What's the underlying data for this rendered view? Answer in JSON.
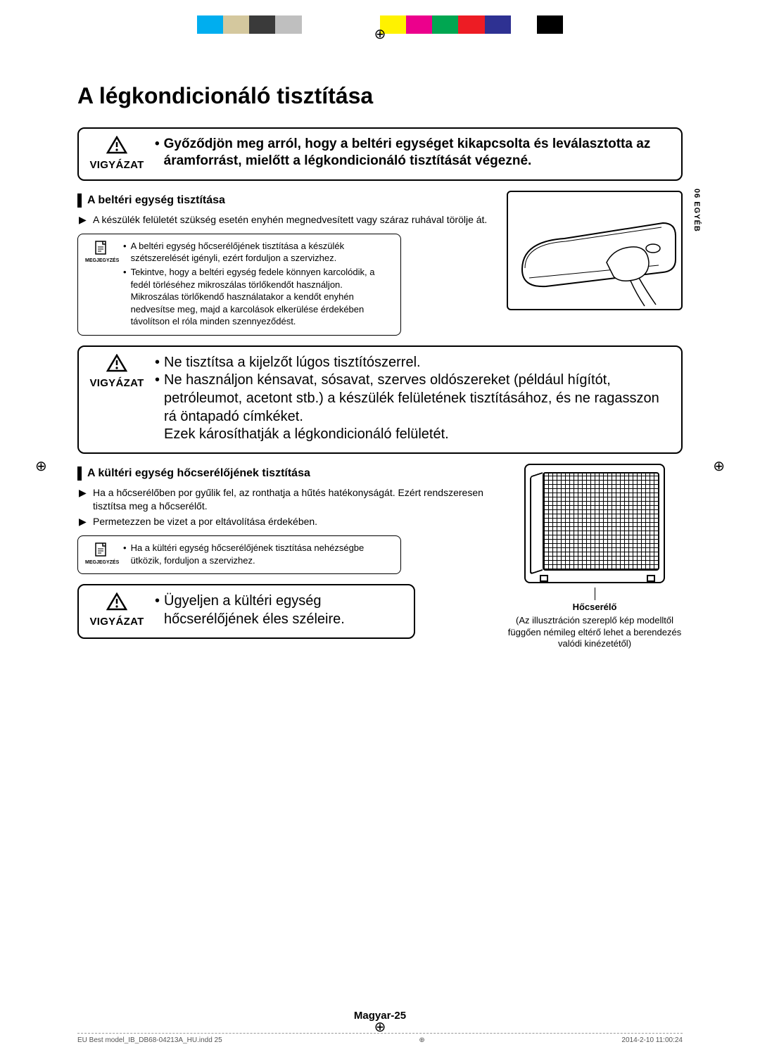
{
  "colorbar": [
    "#00aeef",
    "#d4c89e",
    "#3a3a3a",
    "#bfbfbf",
    "#ffffff",
    "#ffffff",
    "#ffffff",
    "#fff200",
    "#ec008c",
    "#00a651",
    "#ed1c24",
    "#2e3192",
    "#ffffff",
    "#000000"
  ],
  "title": "A légkondicionáló tisztítása",
  "sidetab": "06  EGYÉB",
  "caution1": {
    "label": "VIGYÁZAT",
    "text": "Győződjön meg arról, hogy a beltéri egységet kikapcsolta és leválasztotta az áramforrást, mielőtt a légkondicionáló tisztítását végezné."
  },
  "sec1": {
    "heading": "A beltéri egység tisztítása",
    "item1": "A készülék felületét szükség esetén enyhén megnedvesített vagy száraz ruhával törölje át.",
    "note_label": "MEGJEGYZÉS",
    "note1": "A beltéri egység hőcserélőjének tisztítása a készülék szétszerelését igényli, ezért forduljon a szervizhez.",
    "note2": "Tekintve, hogy a beltéri egység fedele könnyen karcolódik, a fedél törléséhez mikroszálas törlőkendőt használjon. Mikroszálas törlőkendő használatakor a kendőt enyhén nedvesítse meg, majd a karcolások elkerülése érdekében távolítson el róla minden szennyeződést."
  },
  "caution2": {
    "label": "VIGYÁZAT",
    "b1": "Ne tisztítsa a kijelzőt lúgos tisztítószerrel.",
    "b2": "Ne használjon kénsavat, sósavat, szerves oldószereket (például hígítót, petróleumot, acetont stb.) a készülék felületének tisztításához, és ne ragasszon rá öntapadó címkéket.",
    "b2_tail": "Ezek károsíthatják a légkondicionáló felületét."
  },
  "sec2": {
    "heading": "A kültéri egység hőcserélőjének tisztítása",
    "item1": "Ha a hőcserélőben por gyűlik fel, az ronthatja a hűtés hatékonyságát. Ezért rendszeresen tisztítsa meg a hőcserélőt.",
    "item2": "Permetezzen be vizet a por eltávolítása érdekében.",
    "note_label": "MEGJEGYZÉS",
    "note1": "Ha a kültéri egység hőcserélőjének tisztítása nehézségbe ütközik, forduljon a szervizhez.",
    "fig_caption": "Hőcserélő",
    "fig_note": "(Az illusztráción szereplő kép modelltől függően némileg eltérő lehet a berendezés valódi kinézetétől)"
  },
  "caution3": {
    "label": "VIGYÁZAT",
    "text": "Ügyeljen a kültéri egység hőcserélőjének éles széleire."
  },
  "footer": "Magyar-25",
  "print": {
    "file": "EU Best model_IB_DB68-04213A_HU.indd   25",
    "date": "2014-2-10   11:00:24"
  }
}
